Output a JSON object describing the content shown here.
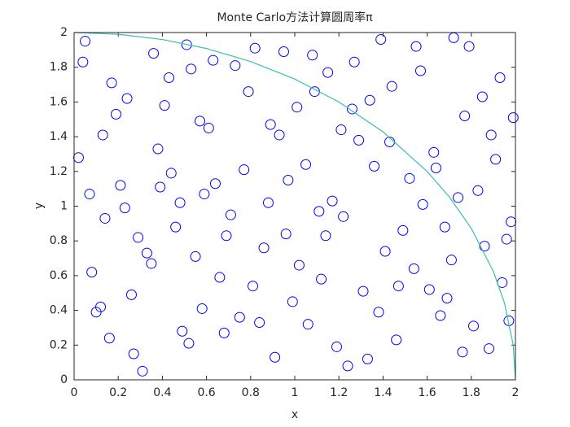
{
  "chart_data": {
    "type": "scatter",
    "title": "Monte Carlo方法计算圆周率π",
    "xlabel": "x",
    "ylabel": "y",
    "xlim": [
      0,
      2
    ],
    "ylim": [
      0,
      2
    ],
    "xticks": [
      0,
      0.2,
      0.4,
      0.6,
      0.8,
      1,
      1.2,
      1.4,
      1.6,
      1.8,
      2
    ],
    "yticks": [
      0,
      0.2,
      0.4,
      0.6,
      0.8,
      1,
      1.2,
      1.4,
      1.6,
      1.8,
      2
    ],
    "series": [
      {
        "type": "scatter",
        "color": "#0000ff",
        "x": [
          0.05,
          0.12,
          0.21,
          0.33,
          0.41,
          0.52,
          0.63,
          0.71,
          0.84,
          0.93,
          1.02,
          1.15,
          1.24,
          1.36,
          1.47,
          1.55,
          1.66,
          1.74,
          1.85,
          1.96,
          0.08,
          0.17,
          0.27,
          0.38,
          0.46,
          0.57,
          0.68,
          0.79,
          0.88,
          0.99,
          1.08,
          1.19,
          1.29,
          1.41,
          1.52,
          1.61,
          1.72,
          1.81,
          1.91,
          1.98,
          0.02,
          0.14,
          0.24,
          0.31,
          0.44,
          0.55,
          0.61,
          0.75,
          0.82,
          0.96,
          1.05,
          1.12,
          1.27,
          1.33,
          1.44,
          1.58,
          1.69,
          1.77,
          1.88,
          1.93,
          0.1,
          0.19,
          0.29,
          0.36,
          0.49,
          0.59,
          0.66,
          0.77,
          0.91,
          1.01,
          1.11,
          1.21,
          1.31,
          1.39,
          1.49,
          1.63,
          1.71,
          1.83,
          1.94,
          0.53,
          0.04,
          0.16,
          0.23,
          0.35,
          0.43,
          0.58,
          0.64,
          0.73,
          0.86,
          0.97,
          1.06,
          1.17,
          1.22,
          1.34,
          1.46,
          1.57,
          1.68,
          1.79,
          1.89,
          1.97,
          0.07,
          0.13,
          0.26,
          0.39,
          0.48,
          0.51,
          0.69,
          0.81,
          0.89,
          0.95,
          1.09,
          1.14,
          1.26,
          1.38,
          1.43,
          1.54,
          1.64,
          1.76,
          1.86,
          1.99
        ],
        "y": [
          1.95,
          0.42,
          1.12,
          0.73,
          1.58,
          0.21,
          1.84,
          0.95,
          0.33,
          1.41,
          0.66,
          1.77,
          0.08,
          1.23,
          0.54,
          1.92,
          0.37,
          1.05,
          1.63,
          0.81,
          0.62,
          1.71,
          0.15,
          1.33,
          0.88,
          1.49,
          0.27,
          1.66,
          1.02,
          0.45,
          1.87,
          0.19,
          1.38,
          0.74,
          1.16,
          0.52,
          1.97,
          0.31,
          1.27,
          0.91,
          1.28,
          0.93,
          1.62,
          0.05,
          1.19,
          0.71,
          1.45,
          0.36,
          1.91,
          0.84,
          1.24,
          0.58,
          1.83,
          0.12,
          1.69,
          1.01,
          0.47,
          1.52,
          0.18,
          1.74,
          0.39,
          1.53,
          0.82,
          1.88,
          0.28,
          1.07,
          0.59,
          1.21,
          0.13,
          1.57,
          0.97,
          1.44,
          0.51,
          1.96,
          0.86,
          1.31,
          0.69,
          1.09,
          0.56,
          1.79,
          1.83,
          0.24,
          0.99,
          0.67,
          1.74,
          0.41,
          1.13,
          1.81,
          0.76,
          1.15,
          0.32,
          1.03,
          0.94,
          1.61,
          0.23,
          1.78,
          0.88,
          1.92,
          1.41,
          0.34,
          1.07,
          1.41,
          0.49,
          1.11,
          1.02,
          1.93,
          0.83,
          0.54,
          1.47,
          1.89,
          1.66,
          0.83,
          1.56,
          0.39,
          1.37,
          0.64,
          1.22,
          0.16,
          0.77,
          1.51
        ]
      },
      {
        "type": "line",
        "color": "#3cbfae",
        "x": [
          0,
          0.2,
          0.4,
          0.6,
          0.8,
          1,
          1.2,
          1.4,
          1.6,
          1.7,
          1.8,
          1.9,
          1.95,
          1.99,
          2
        ],
        "y": [
          2,
          1.99,
          1.96,
          1.908,
          1.833,
          1.732,
          1.6,
          1.428,
          1.2,
          1.054,
          0.872,
          0.624,
          0.444,
          0.2,
          0
        ]
      }
    ]
  }
}
